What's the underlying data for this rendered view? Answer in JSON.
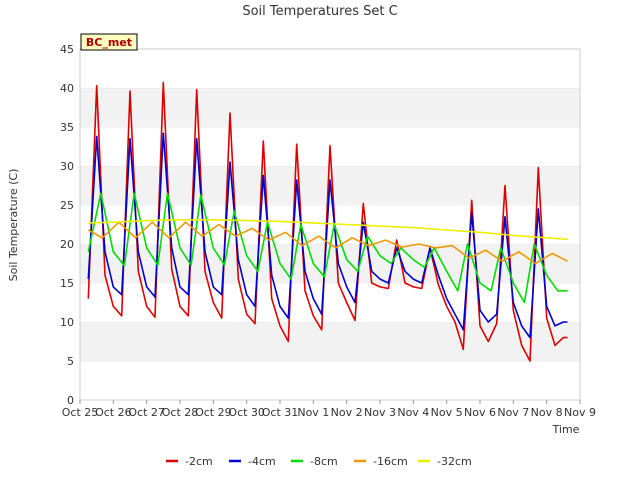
{
  "chart_data": {
    "type": "line",
    "title": "Soil Temperatures Set C",
    "xlabel": "Time",
    "ylabel": "Soil Temperature (C)",
    "ylim": [
      0,
      45
    ],
    "yticks": [
      0,
      5,
      10,
      15,
      20,
      25,
      30,
      35,
      40,
      45
    ],
    "xlim": [
      "2023-10-25",
      "2023-11-09"
    ],
    "xticks": [
      "Oct 25",
      "Oct 26",
      "Oct 27",
      "Oct 28",
      "Oct 29",
      "Oct 30",
      "Oct 31",
      "Nov 1",
      "Nov 2",
      "Nov 3",
      "Nov 4",
      "Nov 5",
      "Nov 6",
      "Nov 7",
      "Nov 8",
      "Nov 9"
    ],
    "grid": "horizontal alternating bands",
    "legend": "bottom",
    "station_label": "BC_met",
    "series": [
      {
        "name": "-2cm",
        "color": "#dd0000",
        "x": [
          "2023-10-25 06:00",
          "2023-10-25 12:00",
          "2023-10-25 18:00",
          "2023-10-26 00:00",
          "2023-10-26 06:00",
          "2023-10-26 12:00",
          "2023-10-26 18:00",
          "2023-10-27 00:00",
          "2023-10-27 06:00",
          "2023-10-27 12:00",
          "2023-10-27 18:00",
          "2023-10-28 00:00",
          "2023-10-28 06:00",
          "2023-10-28 12:00",
          "2023-10-28 18:00",
          "2023-10-29 00:00",
          "2023-10-29 06:00",
          "2023-10-29 12:00",
          "2023-10-29 18:00",
          "2023-10-30 00:00",
          "2023-10-30 06:00",
          "2023-10-30 12:00",
          "2023-10-30 18:00",
          "2023-10-31 00:00",
          "2023-10-31 06:00",
          "2023-10-31 12:00",
          "2023-10-31 18:00",
          "2023-11-01 00:00",
          "2023-11-01 06:00",
          "2023-11-01 12:00",
          "2023-11-01 18:00",
          "2023-11-02 00:00",
          "2023-11-02 06:00",
          "2023-11-02 12:00",
          "2023-11-02 18:00",
          "2023-11-03 00:00",
          "2023-11-03 06:00",
          "2023-11-03 12:00",
          "2023-11-03 18:00",
          "2023-11-04 00:00",
          "2023-11-04 06:00",
          "2023-11-04 12:00",
          "2023-11-04 18:00",
          "2023-11-05 00:00",
          "2023-11-05 06:00",
          "2023-11-05 12:00",
          "2023-11-05 18:00",
          "2023-11-06 00:00",
          "2023-11-06 06:00",
          "2023-11-06 12:00",
          "2023-11-06 18:00",
          "2023-11-07 00:00",
          "2023-11-07 06:00",
          "2023-11-07 12:00",
          "2023-11-07 18:00",
          "2023-11-08 00:00",
          "2023-11-08 06:00",
          "2023-11-08 12:00",
          "2023-11-08 15:00"
        ],
        "y": [
          13.0,
          40.3,
          16.0,
          12.0,
          10.8,
          39.6,
          16.5,
          12.0,
          10.6,
          40.7,
          16.8,
          12.0,
          10.8,
          39.8,
          16.5,
          12.5,
          10.5,
          36.8,
          15.5,
          11.0,
          9.8,
          33.2,
          13.0,
          9.5,
          7.5,
          32.8,
          14.0,
          10.8,
          9.0,
          32.6,
          15.0,
          12.5,
          10.2,
          25.2,
          15.0,
          14.5,
          14.3,
          20.5,
          15.0,
          14.5,
          14.3,
          19.5,
          14.8,
          12.0,
          10.0,
          6.5,
          25.6,
          9.5,
          7.5,
          9.8,
          27.5,
          11.5,
          7.0,
          5.0,
          29.8,
          10.5,
          7.0,
          8.0,
          8.0
        ]
      },
      {
        "name": "-4cm",
        "color": "#0000cc",
        "x": [
          "2023-10-25 06:00",
          "2023-10-25 12:00",
          "2023-10-25 18:00",
          "2023-10-26 00:00",
          "2023-10-26 06:00",
          "2023-10-26 12:00",
          "2023-10-26 18:00",
          "2023-10-27 00:00",
          "2023-10-27 06:00",
          "2023-10-27 12:00",
          "2023-10-27 18:00",
          "2023-10-28 00:00",
          "2023-10-28 06:00",
          "2023-10-28 12:00",
          "2023-10-28 18:00",
          "2023-10-29 00:00",
          "2023-10-29 06:00",
          "2023-10-29 12:00",
          "2023-10-29 18:00",
          "2023-10-30 00:00",
          "2023-10-30 06:00",
          "2023-10-30 12:00",
          "2023-10-30 18:00",
          "2023-10-31 00:00",
          "2023-10-31 06:00",
          "2023-10-31 12:00",
          "2023-10-31 18:00",
          "2023-11-01 00:00",
          "2023-11-01 06:00",
          "2023-11-01 12:00",
          "2023-11-01 18:00",
          "2023-11-02 00:00",
          "2023-11-02 06:00",
          "2023-11-02 12:00",
          "2023-11-02 18:00",
          "2023-11-03 00:00",
          "2023-11-03 06:00",
          "2023-11-03 12:00",
          "2023-11-03 18:00",
          "2023-11-04 00:00",
          "2023-11-04 06:00",
          "2023-11-04 12:00",
          "2023-11-04 18:00",
          "2023-11-05 00:00",
          "2023-11-05 06:00",
          "2023-11-05 12:00",
          "2023-11-05 18:00",
          "2023-11-06 00:00",
          "2023-11-06 06:00",
          "2023-11-06 12:00",
          "2023-11-06 18:00",
          "2023-11-07 00:00",
          "2023-11-07 06:00",
          "2023-11-07 12:00",
          "2023-11-07 18:00",
          "2023-11-08 00:00",
          "2023-11-08 06:00",
          "2023-11-08 12:00",
          "2023-11-08 15:00"
        ],
        "y": [
          15.5,
          33.8,
          19.0,
          14.5,
          13.5,
          33.5,
          19.0,
          14.5,
          13.2,
          34.2,
          19.5,
          14.5,
          13.5,
          33.5,
          19.0,
          14.5,
          13.5,
          30.5,
          18.0,
          13.5,
          12.0,
          28.8,
          16.0,
          12.0,
          10.5,
          28.2,
          16.5,
          13.0,
          11.0,
          28.2,
          17.5,
          14.5,
          12.5,
          22.8,
          16.5,
          15.5,
          15.0,
          19.5,
          16.5,
          15.5,
          15.0,
          19.5,
          16.0,
          13.0,
          11.0,
          9.0,
          24.0,
          11.5,
          10.0,
          11.0,
          23.5,
          12.5,
          9.5,
          8.0,
          24.5,
          12.0,
          9.5,
          10.0,
          10.0
        ]
      },
      {
        "name": "-8cm",
        "color": "#00dd00",
        "x": [
          "2023-10-25 06:00",
          "2023-10-25 15:00",
          "2023-10-26 00:00",
          "2023-10-26 08:00",
          "2023-10-26 15:00",
          "2023-10-27 00:00",
          "2023-10-27 08:00",
          "2023-10-27 15:00",
          "2023-10-28 00:00",
          "2023-10-28 08:00",
          "2023-10-28 15:00",
          "2023-10-29 00:00",
          "2023-10-29 08:00",
          "2023-10-29 15:00",
          "2023-10-30 00:00",
          "2023-10-30 08:00",
          "2023-10-30 15:00",
          "2023-10-31 00:00",
          "2023-10-31 08:00",
          "2023-10-31 15:00",
          "2023-11-01 00:00",
          "2023-11-01 08:00",
          "2023-11-01 15:00",
          "2023-11-02 00:00",
          "2023-11-02 08:00",
          "2023-11-02 15:00",
          "2023-11-03 00:00",
          "2023-11-03 08:00",
          "2023-11-03 15:00",
          "2023-11-04 00:00",
          "2023-11-04 08:00",
          "2023-11-04 15:00",
          "2023-11-05 00:00",
          "2023-11-05 08:00",
          "2023-11-05 15:00",
          "2023-11-06 00:00",
          "2023-11-06 08:00",
          "2023-11-06 15:00",
          "2023-11-07 00:00",
          "2023-11-07 08:00",
          "2023-11-07 15:00",
          "2023-11-08 00:00",
          "2023-11-08 08:00",
          "2023-11-08 15:00"
        ],
        "y": [
          19.0,
          26.5,
          19.0,
          17.2,
          26.5,
          19.5,
          17.3,
          26.5,
          19.5,
          17.3,
          26.3,
          19.5,
          17.3,
          24.2,
          18.5,
          16.5,
          22.8,
          17.5,
          15.5,
          22.5,
          17.5,
          15.8,
          22.5,
          18.0,
          16.5,
          21.0,
          18.5,
          17.5,
          19.5,
          18.0,
          17.0,
          19.5,
          16.5,
          14.0,
          20.0,
          15.0,
          14.0,
          19.5,
          15.0,
          12.5,
          20.0,
          16.0,
          14.0,
          14.0
        ]
      },
      {
        "name": "-16cm",
        "color": "#ee9900",
        "x": [
          "2023-10-25 06:00",
          "2023-10-25 16:00",
          "2023-10-26 04:00",
          "2023-10-26 16:00",
          "2023-10-27 04:00",
          "2023-10-27 16:00",
          "2023-10-28 04:00",
          "2023-10-28 16:00",
          "2023-10-29 04:00",
          "2023-10-29 16:00",
          "2023-10-30 04:00",
          "2023-10-30 16:00",
          "2023-10-31 04:00",
          "2023-10-31 16:00",
          "2023-11-01 04:00",
          "2023-11-01 16:00",
          "2023-11-02 04:00",
          "2023-11-02 16:00",
          "2023-11-03 04:00",
          "2023-11-03 16:00",
          "2023-11-04 04:00",
          "2023-11-04 16:00",
          "2023-11-05 04:00",
          "2023-11-05 16:00",
          "2023-11-06 04:00",
          "2023-11-06 16:00",
          "2023-11-07 04:00",
          "2023-11-07 16:00",
          "2023-11-08 04:00",
          "2023-11-08 15:00"
        ],
        "y": [
          21.8,
          20.8,
          22.8,
          20.8,
          22.8,
          20.8,
          22.8,
          21.0,
          22.5,
          21.0,
          22.0,
          20.5,
          21.5,
          19.8,
          21.0,
          19.5,
          20.8,
          19.8,
          20.5,
          19.6,
          20.0,
          19.5,
          19.8,
          18.2,
          19.2,
          17.8,
          19.0,
          17.5,
          18.8,
          17.8
        ]
      },
      {
        "name": "-32cm",
        "color": "#eeee00",
        "x": [
          "2023-10-25 06:00",
          "2023-10-26 00:00",
          "2023-10-27 00:00",
          "2023-10-28 00:00",
          "2023-10-29 00:00",
          "2023-10-30 00:00",
          "2023-10-31 00:00",
          "2023-11-01 00:00",
          "2023-11-02 00:00",
          "2023-11-03 00:00",
          "2023-11-04 00:00",
          "2023-11-05 00:00",
          "2023-11-06 00:00",
          "2023-11-07 00:00",
          "2023-11-08 00:00",
          "2023-11-08 15:00"
        ],
        "y": [
          22.7,
          22.8,
          23.0,
          23.1,
          23.1,
          23.0,
          22.9,
          22.7,
          22.5,
          22.3,
          22.1,
          21.8,
          21.5,
          21.1,
          20.8,
          20.6
        ]
      }
    ]
  }
}
